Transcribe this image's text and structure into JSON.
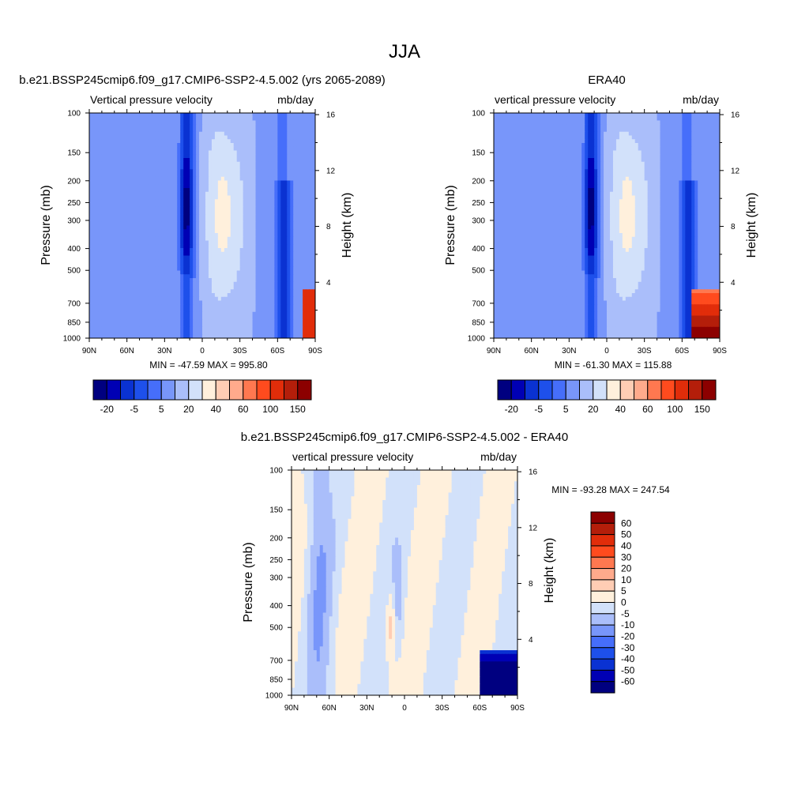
{
  "page": {
    "title": "JJA"
  },
  "chart_data": [
    {
      "type": "contour",
      "title": "b.e21.BSSP245cmip6.f09_g17.CMIP6-SSP2-4.5.002 (yrs 2065-2089)",
      "left_label": "Vertical pressure velocity",
      "right_label": "mb/day",
      "ylabel": "Pressure (mb)",
      "ylabel_right": "Height (km)",
      "x_ticks": [
        "90N",
        "60N",
        "30N",
        "0",
        "30S",
        "60S",
        "90S"
      ],
      "y_ticks": [
        "100",
        "150",
        "200",
        "250",
        "300",
        "400",
        "500",
        "700",
        "850",
        "1000"
      ],
      "y_right_ticks": [
        "16",
        "12",
        "8",
        "4"
      ],
      "min_max": "MIN = -47.59  MAX = 995.80",
      "colorbar": {
        "orientation": "horizontal",
        "labels": [
          "-20",
          "-5",
          "5",
          "20",
          "40",
          "60",
          "100",
          "150"
        ],
        "colors": [
          "#000080",
          "#0000b4",
          "#0a32d2",
          "#1e50eb",
          "#466efa",
          "#7896fa",
          "#aabefa",
          "#d2e1fa",
          "#fff0dc",
          "#ffcdb4",
          "#ffaa8c",
          "#ff7850",
          "#ff4b1e",
          "#e12d0a",
          "#b41e0a",
          "#8c0000"
        ]
      },
      "min_value": -47.59,
      "max_value": 995.8
    },
    {
      "type": "contour",
      "title": "ERA40",
      "left_label": "vertical pressure velocity",
      "right_label": "mb/day",
      "ylabel": "Pressure (mb)",
      "ylabel_right": "Height (km)",
      "x_ticks": [
        "90N",
        "60N",
        "30N",
        "0",
        "30S",
        "60S",
        "90S"
      ],
      "y_ticks": [
        "100",
        "150",
        "200",
        "250",
        "300",
        "400",
        "500",
        "700",
        "850",
        "1000"
      ],
      "y_right_ticks": [
        "16",
        "12",
        "8",
        "4"
      ],
      "min_max": "MIN = -61.30  MAX = 115.88",
      "colorbar": {
        "orientation": "horizontal",
        "labels": [
          "-20",
          "-5",
          "5",
          "20",
          "40",
          "60",
          "100",
          "150"
        ],
        "colors": [
          "#000080",
          "#0000b4",
          "#0a32d2",
          "#1e50eb",
          "#466efa",
          "#7896fa",
          "#aabefa",
          "#d2e1fa",
          "#fff0dc",
          "#ffcdb4",
          "#ffaa8c",
          "#ff7850",
          "#ff4b1e",
          "#e12d0a",
          "#b41e0a",
          "#8c0000"
        ]
      },
      "min_value": -61.3,
      "max_value": 115.88
    },
    {
      "type": "contour",
      "title": "b.e21.BSSP245cmip6.f09_g17.CMIP6-SSP2-4.5.002 - ERA40",
      "left_label": "vertical pressure velocity",
      "right_label": "mb/day",
      "ylabel": "Pressure (mb)",
      "ylabel_right": "Height (km)",
      "x_ticks": [
        "90N",
        "60N",
        "30N",
        "0",
        "30S",
        "60S",
        "90S"
      ],
      "y_ticks": [
        "100",
        "150",
        "200",
        "250",
        "300",
        "400",
        "500",
        "700",
        "850",
        "1000"
      ],
      "y_right_ticks": [
        "16",
        "12",
        "8",
        "4"
      ],
      "min_max": "MIN = -93.28  MAX = 247.54",
      "colorbar": {
        "orientation": "vertical",
        "labels": [
          "60",
          "50",
          "40",
          "30",
          "20",
          "10",
          "5",
          "0",
          "-5",
          "-10",
          "-20",
          "-30",
          "-40",
          "-50",
          "-60"
        ],
        "colors": [
          "#8c0000",
          "#b41e0a",
          "#e12d0a",
          "#ff4b1e",
          "#ff7850",
          "#ffaa8c",
          "#ffcdb4",
          "#fff0dc",
          "#d2e1fa",
          "#aabefa",
          "#7896fa",
          "#466efa",
          "#1e50eb",
          "#0a32d2",
          "#0000b4",
          "#000080"
        ]
      },
      "min_value": -93.28,
      "max_value": 247.54
    }
  ]
}
